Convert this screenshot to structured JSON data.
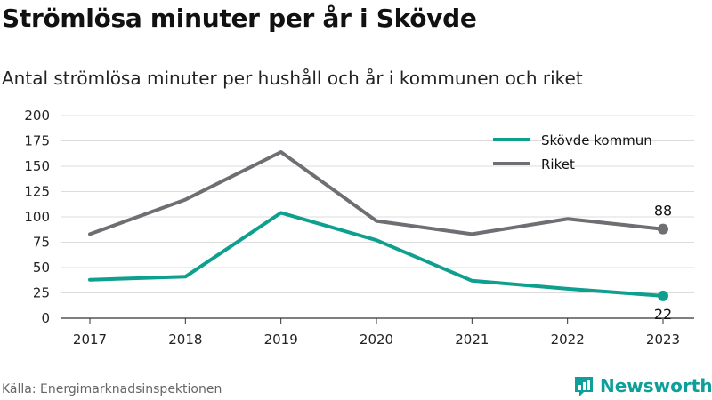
{
  "title": "Strömlösa minuter per år i Skövde",
  "subtitle": "Antal strömlösa minuter per hushåll och år i kommunen och riket",
  "source": "Källa: Energimarknadsinspektionen",
  "brand": {
    "name": "Newsworthy",
    "icon": "newsworthy-logo-icon",
    "color": "#0f9f9a"
  },
  "chart_data": {
    "type": "line",
    "x": [
      "2017",
      "2018",
      "2019",
      "2020",
      "2021",
      "2022",
      "2023"
    ],
    "ylim": [
      0,
      200
    ],
    "yticks": [
      0,
      25,
      50,
      75,
      100,
      125,
      150,
      175,
      200
    ],
    "grid": true,
    "legend_position": "top-right",
    "series": [
      {
        "name": "Skövde kommun",
        "color": "#0f9f8f",
        "values": [
          38,
          41,
          104,
          77,
          37,
          29,
          22
        ],
        "end_label": "22"
      },
      {
        "name": "Riket",
        "color": "#6e6e73",
        "values": [
          83,
          117,
          164,
          96,
          83,
          98,
          88
        ],
        "end_label": "88"
      }
    ]
  }
}
